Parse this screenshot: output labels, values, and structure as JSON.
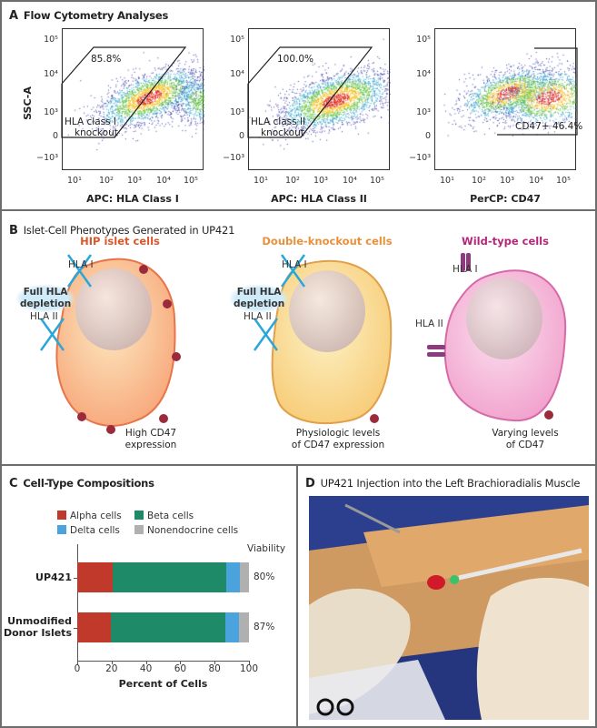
{
  "panel_a": {
    "letter": "A",
    "title": "Flow Cytometry Analyses",
    "y_label": "SSC-A",
    "y_ticks": [
      "10⁵",
      "10⁴",
      "10³",
      "0",
      "−10³"
    ],
    "x_ticks": [
      "10¹",
      "10²",
      "10³",
      "10⁴",
      "10⁵"
    ],
    "plots": [
      {
        "x_label": "APC: HLA Class I",
        "gate_percent": "85.8%",
        "gate_name_line1": "HLA class I",
        "gate_name_line2": "knockout"
      },
      {
        "x_label": "APC: HLA Class II",
        "gate_percent": "100.0%",
        "gate_name_line1": "HLA class II",
        "gate_name_line2": "knockout"
      },
      {
        "x_label": "PerCP: CD47",
        "gate_label": "CD47+ 46.4%"
      }
    ]
  },
  "panel_b": {
    "letter": "B",
    "title": "Islet-Cell Phenotypes Generated in UP421",
    "cells": [
      {
        "title": "HIP islet cells",
        "color": "#d9572b",
        "hla1": "HLA I",
        "hla2": "HLA II",
        "depletion_line1": "Full HLA",
        "depletion_line2": "depletion",
        "caption_line1": "High CD47",
        "caption_line2": "expression"
      },
      {
        "title": "Double-knockout cells",
        "color": "#e8913a",
        "hla1": "HLA I",
        "hla2": "HLA II",
        "depletion_line1": "Full HLA",
        "depletion_line2": "depletion",
        "caption_line1": "Physiologic levels",
        "caption_line2": "of CD47 expression"
      },
      {
        "title": "Wild-type cells",
        "color": "#b5267a",
        "hla1": "HLA I",
        "hla2": "HLA II",
        "caption_line1": "Varying levels",
        "caption_line2": "of CD47"
      }
    ]
  },
  "panel_c": {
    "letter": "C",
    "title": "Cell-Type Compositions",
    "viability_header": "Viability"
  },
  "chart_data": {
    "type": "bar",
    "orientation": "horizontal",
    "stacked": true,
    "categories": [
      "UP421",
      "Unmodified Donor Islets"
    ],
    "category_lines": [
      [
        "UP421"
      ],
      [
        "Unmodified",
        "Donor Islets"
      ]
    ],
    "series": [
      {
        "name": "Alpha cells",
        "color": "#c0392b",
        "values": [
          20.5,
          19.7
        ]
      },
      {
        "name": "Beta cells",
        "color": "#1f8a68",
        "values": [
          66.3,
          66.3
        ]
      },
      {
        "name": "Delta cells",
        "color": "#4aa3dc",
        "values": [
          8.0,
          8.3
        ]
      },
      {
        "name": "Nonendocrine cells",
        "color": "#b0b0b0",
        "values": [
          5.2,
          5.7
        ]
      }
    ],
    "viability": [
      "80%",
      "87%"
    ],
    "xlabel": "Percent of Cells",
    "xlim": [
      0,
      100
    ],
    "x_ticks": [
      "0",
      "20",
      "40",
      "60",
      "80",
      "100"
    ],
    "legend_placement": "top",
    "grid": false
  },
  "panel_d": {
    "letter": "D",
    "title": "UP421 Injection into the Left Brachioradialis Muscle"
  }
}
